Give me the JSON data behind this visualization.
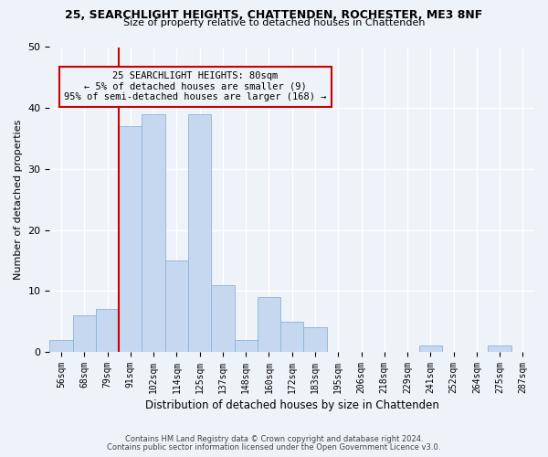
{
  "title_line1": "25, SEARCHLIGHT HEIGHTS, CHATTENDEN, ROCHESTER, ME3 8NF",
  "title_line2": "Size of property relative to detached houses in Chattenden",
  "xlabel": "Distribution of detached houses by size in Chattenden",
  "ylabel": "Number of detached properties",
  "bar_labels": [
    "56sqm",
    "68sqm",
    "79sqm",
    "91sqm",
    "102sqm",
    "114sqm",
    "125sqm",
    "137sqm",
    "148sqm",
    "160sqm",
    "172sqm",
    "183sqm",
    "195sqm",
    "206sqm",
    "218sqm",
    "229sqm",
    "241sqm",
    "252sqm",
    "264sqm",
    "275sqm",
    "287sqm"
  ],
  "bar_values": [
    2,
    6,
    7,
    37,
    39,
    15,
    39,
    11,
    2,
    9,
    5,
    4,
    0,
    0,
    0,
    0,
    1,
    0,
    0,
    1,
    0
  ],
  "bar_color": "#c5d8f0",
  "bar_edge_color": "#8ab4d8",
  "vline_color": "#cc0000",
  "vline_x": 2.5,
  "annotation_text_line1": "25 SEARCHLIGHT HEIGHTS: 80sqm",
  "annotation_text_line2": "← 5% of detached houses are smaller (9)",
  "annotation_text_line3": "95% of semi-detached houses are larger (168) →",
  "annotation_box_color": "#cc0000",
  "ylim": [
    0,
    50
  ],
  "footnote1": "Contains HM Land Registry data © Crown copyright and database right 2024.",
  "footnote2": "Contains public sector information licensed under the Open Government Licence v3.0.",
  "background_color": "#eef2f9",
  "grid_color": "#ffffff"
}
